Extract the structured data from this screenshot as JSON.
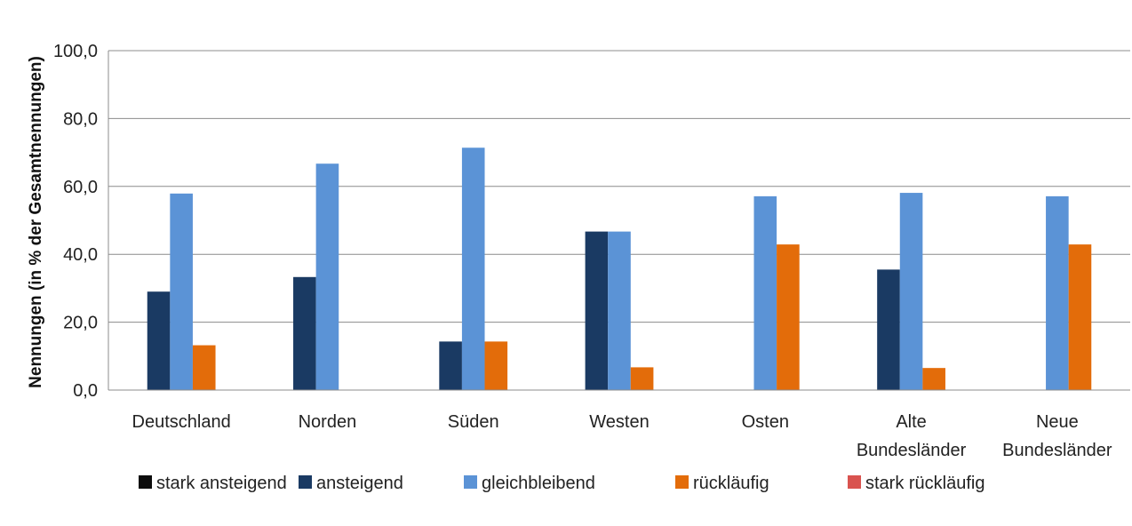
{
  "chart_data": {
    "type": "bar",
    "title": "",
    "xlabel": "",
    "ylabel": "Nennungen  (in % der Gesamtnennungen)",
    "ylim": [
      0,
      100
    ],
    "yticks": [
      "0,0",
      "20,0",
      "40,0",
      "60,0",
      "80,0",
      "100,0"
    ],
    "grid": true,
    "legend_position": "bottom",
    "categories": [
      [
        "Deutschland"
      ],
      [
        "Norden"
      ],
      [
        "Süden"
      ],
      [
        "Westen"
      ],
      [
        "Osten"
      ],
      [
        "Alte",
        "Bundesländer"
      ],
      [
        "Neue",
        "Bundesländer"
      ]
    ],
    "series": [
      {
        "name": "stark ansteigend",
        "color": "#0d0d0d",
        "values": [
          0,
          0,
          0,
          0,
          0,
          0,
          0
        ]
      },
      {
        "name": "ansteigend",
        "color": "#1a3a63",
        "values": [
          29.0,
          33.3,
          14.3,
          46.7,
          0,
          35.5,
          0
        ]
      },
      {
        "name": "gleichbleibend",
        "color": "#5b93d6",
        "values": [
          57.9,
          66.7,
          71.4,
          46.7,
          57.1,
          58.1,
          57.1
        ]
      },
      {
        "name": "rückläufig",
        "color": "#e36c0a",
        "values": [
          13.2,
          0,
          14.3,
          6.7,
          42.9,
          6.5,
          42.9
        ]
      },
      {
        "name": "stark rückläufig",
        "color": "#d9534f",
        "values": [
          0,
          0,
          0,
          0,
          0,
          0,
          0
        ]
      }
    ]
  }
}
